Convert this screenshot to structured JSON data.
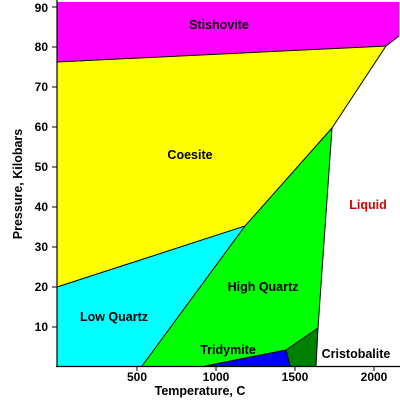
{
  "diagram": {
    "xlabel": "Temperature, C",
    "ylabel": "Pressure, Kilobars",
    "x_ticks": [
      "500",
      "1000",
      "1500",
      "2000"
    ],
    "y_ticks": [
      "10",
      "20",
      "30",
      "40",
      "50",
      "60",
      "70",
      "80",
      "90"
    ],
    "phases": [
      {
        "name": "Stishovite",
        "color": "#ff00ff"
      },
      {
        "name": "Coesite",
        "color": "#ffff00"
      },
      {
        "name": "Low Quartz",
        "color": "#00ffff"
      },
      {
        "name": "High Quartz",
        "color": "#00ff00"
      },
      {
        "name": "Tridymite",
        "color": "#0000ff"
      },
      {
        "name": "Cristobalite",
        "color": "#008000"
      },
      {
        "name": "Liquid",
        "color": "#ffffff",
        "label_color": "#cc0000"
      }
    ]
  }
}
